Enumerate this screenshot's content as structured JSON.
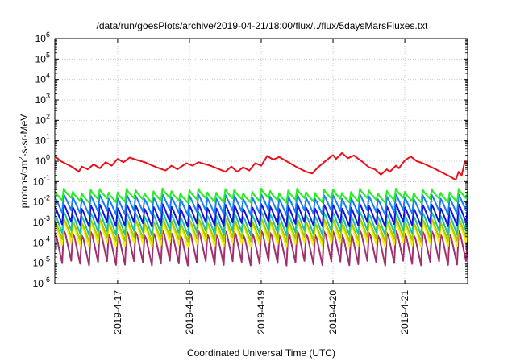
{
  "chart_data": {
    "type": "line",
    "title": "/data/run/goesPlots/archive/2019-04-21/18:00/flux/../flux/5daysMarsFluxes.txt",
    "xlabel": "Coordinated Universal Time (UTC)",
    "ylabel_parts": [
      "protons/cm",
      "2",
      "-s-sr-MeV"
    ],
    "y_scale": "log",
    "ylim": [
      1e-06,
      1000000.0
    ],
    "y_ticks": [
      {
        "exp": "-6",
        "base": "10"
      },
      {
        "exp": "-5",
        "base": "10"
      },
      {
        "exp": "-4",
        "base": "10"
      },
      {
        "exp": "-3",
        "base": "10"
      },
      {
        "exp": "-2",
        "base": "10"
      },
      {
        "exp": "-1",
        "base": "10"
      },
      {
        "exp": "0",
        "base": "10"
      },
      {
        "exp": "1",
        "base": "10"
      },
      {
        "exp": "2",
        "base": "10"
      },
      {
        "exp": "3",
        "base": "10"
      },
      {
        "exp": "4",
        "base": "10"
      },
      {
        "exp": "5",
        "base": "10"
      },
      {
        "exp": "6",
        "base": "10"
      }
    ],
    "x_range": [
      "2019-04-16 03:00",
      "2019-04-21 21:00"
    ],
    "x_ticks": [
      "2019-4-17",
      "2019-4-18",
      "2019-4-19",
      "2019-4-20",
      "2019-4-21"
    ],
    "grid": true,
    "legend": "none",
    "series": [
      {
        "color": "#e8101a",
        "kind": "sawtooth",
        "points": [
          [
            "2019-04-16 03:00",
            1.8
          ],
          [
            "2019-04-16 05:00",
            1.0
          ],
          [
            "2019-04-16 08:00",
            0.6
          ],
          [
            "2019-04-16 09:00",
            0.5
          ],
          [
            "2019-04-16 11:00",
            0.3
          ],
          [
            "2019-04-16 12:00",
            0.55
          ],
          [
            "2019-04-16 14:00",
            0.4
          ],
          [
            "2019-04-16 16:00",
            0.7
          ],
          [
            "2019-04-16 18:00",
            0.45
          ],
          [
            "2019-04-16 20:00",
            0.9
          ],
          [
            "2019-04-16 22:00",
            0.6
          ],
          [
            "2019-04-17 00:00",
            1.3
          ],
          [
            "2019-04-17 02:00",
            0.9
          ],
          [
            "2019-04-17 04:00",
            1.5
          ],
          [
            "2019-04-17 06:00",
            1.2
          ],
          [
            "2019-04-17 09:00",
            0.9
          ],
          [
            "2019-04-17 13:00",
            0.5
          ],
          [
            "2019-04-17 16:00",
            0.35
          ],
          [
            "2019-04-17 18:00",
            0.6
          ],
          [
            "2019-04-17 20:00",
            0.4
          ],
          [
            "2019-04-17 23:00",
            0.8
          ],
          [
            "2019-04-18 01:00",
            0.6
          ],
          [
            "2019-04-18 03:00",
            0.9
          ],
          [
            "2019-04-18 07:00",
            0.6
          ],
          [
            "2019-04-18 10:00",
            0.4
          ],
          [
            "2019-04-18 12:00",
            0.3
          ],
          [
            "2019-04-18 14:00",
            0.55
          ],
          [
            "2019-04-18 16:00",
            0.3
          ],
          [
            "2019-04-18 18:00",
            0.5
          ],
          [
            "2019-04-18 20:00",
            0.35
          ],
          [
            "2019-04-18 22:00",
            0.8
          ],
          [
            "2019-04-19 00:00",
            0.6
          ],
          [
            "2019-04-19 02:00",
            1.8
          ],
          [
            "2019-04-19 04:00",
            1.2
          ],
          [
            "2019-04-19 06:00",
            1.6
          ],
          [
            "2019-04-19 09:00",
            0.9
          ],
          [
            "2019-04-19 12:00",
            0.5
          ],
          [
            "2019-04-19 15:00",
            0.3
          ],
          [
            "2019-04-19 17:00",
            0.25
          ],
          [
            "2019-04-19 19:00",
            0.5
          ],
          [
            "2019-04-19 21:00",
            0.9
          ],
          [
            "2019-04-20 00:00",
            2.0
          ],
          [
            "2019-04-20 01:00",
            1.3
          ],
          [
            "2019-04-20 03:00",
            2.5
          ],
          [
            "2019-04-20 05:00",
            1.4
          ],
          [
            "2019-04-20 07:00",
            1.9
          ],
          [
            "2019-04-20 10:00",
            0.9
          ],
          [
            "2019-04-20 12:00",
            0.5
          ],
          [
            "2019-04-20 14:00",
            0.4
          ],
          [
            "2019-04-20 16:00",
            0.22
          ],
          [
            "2019-04-20 18:00",
            0.4
          ],
          [
            "2019-04-20 19:00",
            0.3
          ],
          [
            "2019-04-20 21:00",
            0.6
          ],
          [
            "2019-04-20 22:00",
            0.45
          ],
          [
            "2019-04-21 00:00",
            1.1
          ],
          [
            "2019-04-21 02:00",
            1.7
          ],
          [
            "2019-04-21 04:00",
            1.0
          ],
          [
            "2019-04-21 06:00",
            0.8
          ],
          [
            "2019-04-21 09:00",
            0.5
          ],
          [
            "2019-04-21 12:00",
            0.3
          ],
          [
            "2019-04-21 15:00",
            0.18
          ],
          [
            "2019-04-21 17:00",
            0.12
          ],
          [
            "2019-04-21 18:00",
            0.3
          ],
          [
            "2019-04-21 19:00",
            0.2
          ],
          [
            "2019-04-21 20:00",
            0.9
          ],
          [
            "2019-04-21 21:00",
            0.7
          ]
        ]
      },
      {
        "color": "#22ee22",
        "kind": "oscillation",
        "peak": 0.035,
        "trough": 0.012,
        "cycles": 46
      },
      {
        "color": "#1a7ef0",
        "kind": "oscillation",
        "peak": 0.018,
        "trough": 0.003,
        "cycles": 46
      },
      {
        "color": "#1414e0",
        "kind": "oscillation",
        "peak": 0.006,
        "trough": 0.0008,
        "cycles": 46
      },
      {
        "color": "#20c0a8",
        "kind": "oscillation",
        "peak": 0.0025,
        "trough": 0.0003,
        "cycles": 46
      },
      {
        "color": "#a8c800",
        "kind": "oscillation",
        "peak": 0.0012,
        "trough": 0.00015,
        "cycles": 46
      },
      {
        "color": "#f4f000",
        "kind": "oscillation",
        "peak": 0.0009,
        "trough": 8e-05,
        "cycles": 46
      },
      {
        "color": "#a03070",
        "kind": "oscillation",
        "peak": 0.0003,
        "trough": 1e-05,
        "cycles": 46
      }
    ]
  }
}
